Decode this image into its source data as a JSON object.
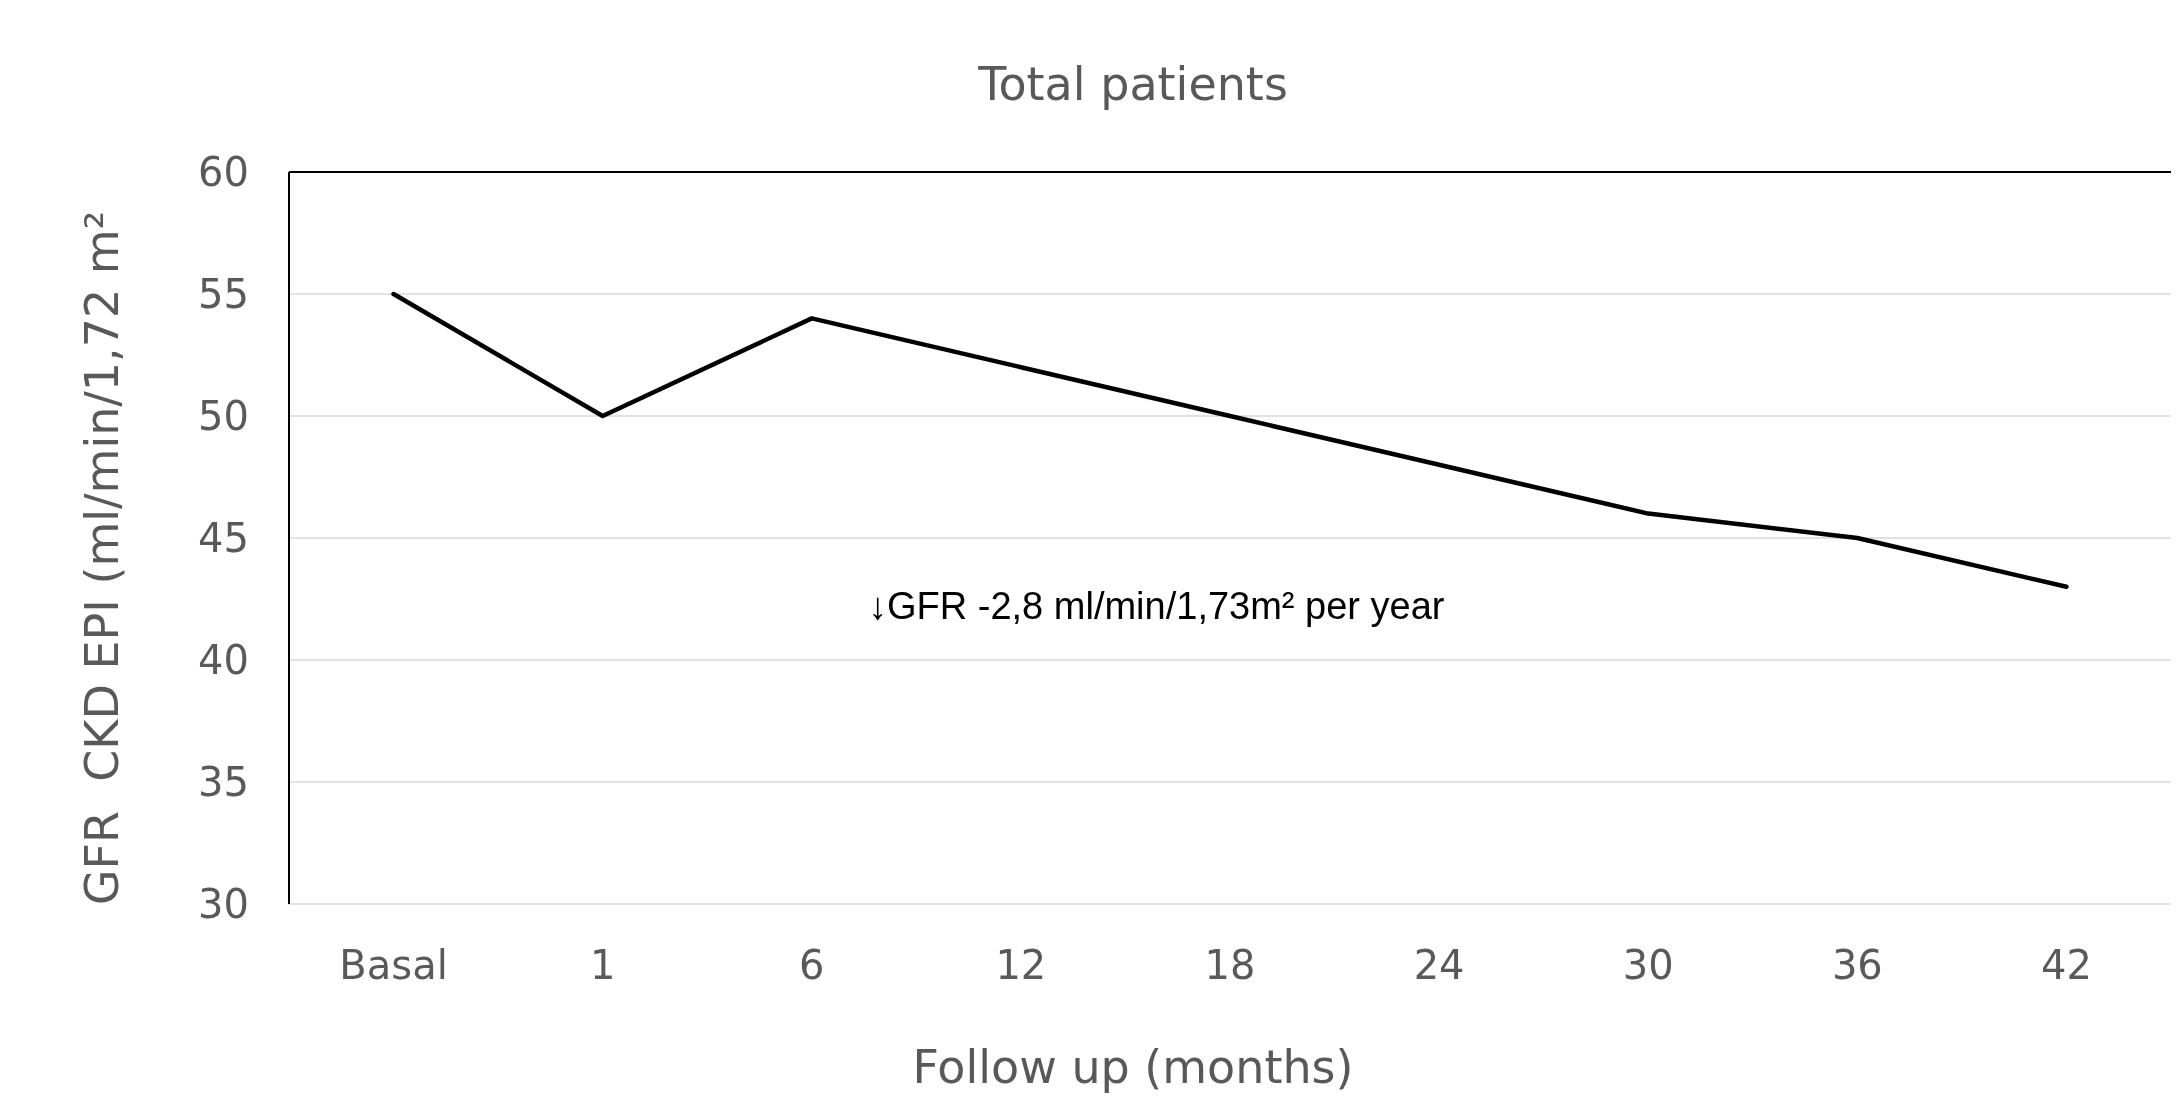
{
  "chart_data": {
    "type": "line",
    "title": "Total patients",
    "xlabel": "Follow up (months)",
    "ylabel": "GFR  CKD EPI (ml/min/1,72 m²",
    "categories": [
      "Basal",
      "1",
      "6",
      "12",
      "18",
      "24",
      "30",
      "36",
      "42"
    ],
    "series": [
      {
        "color": "#000000",
        "values": [
          55,
          50,
          54,
          52,
          50,
          48,
          46,
          45,
          43
        ]
      }
    ],
    "ylim": [
      30,
      60
    ],
    "yticks": [
      30,
      35,
      40,
      45,
      50,
      55,
      60
    ],
    "grid": "y",
    "annotations": [
      "↓GFR -2,8 ml/min/1,73m² per year"
    ]
  }
}
